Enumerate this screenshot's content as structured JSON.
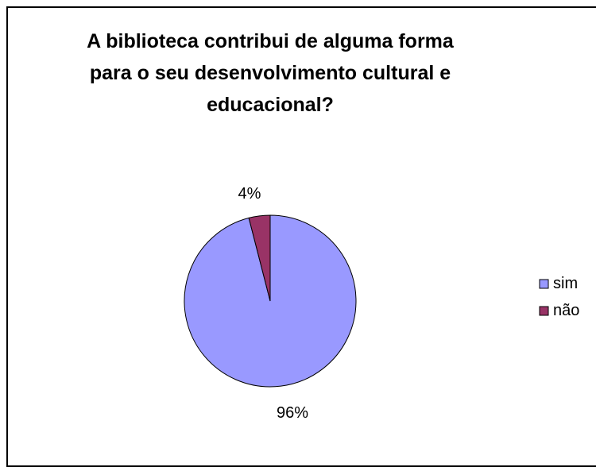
{
  "chart_data": {
    "type": "pie",
    "title_lines": [
      "A biblioteca contribui de alguma forma",
      "para o seu desenvolvimento cultural e",
      "educacional?"
    ],
    "slices": [
      {
        "label": "sim",
        "value": 96,
        "display": "96%",
        "color": "#9999ff"
      },
      {
        "label": "não",
        "value": 4,
        "display": "4%",
        "color": "#993366"
      }
    ],
    "legend_position": "right"
  }
}
